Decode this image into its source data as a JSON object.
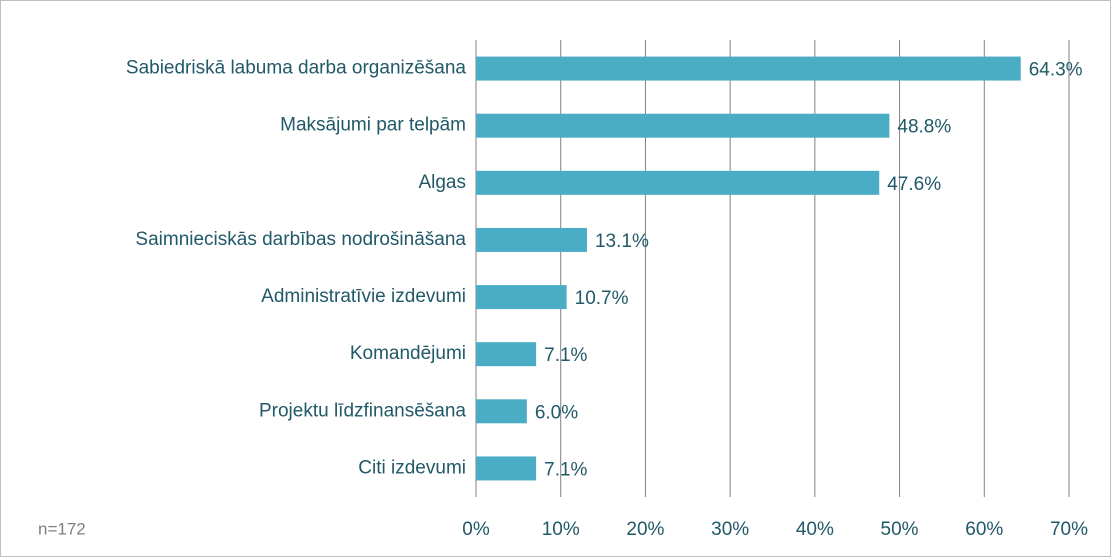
{
  "chart_data": {
    "type": "bar",
    "orientation": "horizontal",
    "categories": [
      "Sabiedriskā labuma darba organizēšana",
      "Maksājumi par telpām",
      "Algas",
      "Saimnieciskās darbības nodrošināšana",
      "Administratīvie izdevumi",
      "Komandējumi",
      "Projektu līdzfinansēšana",
      "Citi izdevumi"
    ],
    "values": [
      64.3,
      48.8,
      47.6,
      13.1,
      10.7,
      7.1,
      6.0,
      7.1
    ],
    "value_labels": [
      "64.3%",
      "48.8%",
      "47.6%",
      "13.1%",
      "10.7%",
      "7.1%",
      "6.0%",
      "7.1%"
    ],
    "color": "#4bacc6",
    "xlim": [
      0,
      70
    ],
    "xticks": [
      {
        "value": 0,
        "label": "0%"
      },
      {
        "value": 10,
        "label": "10%"
      },
      {
        "value": 20,
        "label": "20%"
      },
      {
        "value": 30,
        "label": "30%"
      },
      {
        "value": 40,
        "label": "40%"
      },
      {
        "value": 50,
        "label": "50%"
      },
      {
        "value": 60,
        "label": "60%"
      },
      {
        "value": 70,
        "label": "70%"
      }
    ],
    "grid": true,
    "annotation": "n=172"
  }
}
